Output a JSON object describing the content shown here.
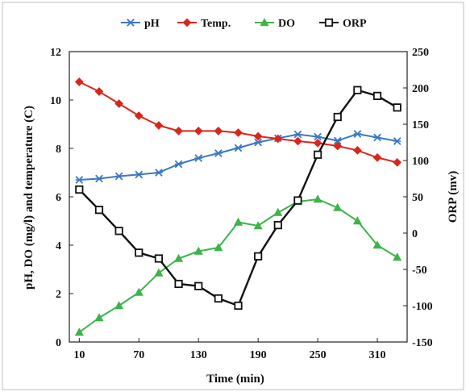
{
  "chart_data": {
    "type": "line",
    "xlabel": "Time (min)",
    "ylabel": "pH, DO (mg/l) and temperature  (C)",
    "y2label": "ORP (mv)",
    "x_ticks": [
      10,
      70,
      130,
      190,
      250,
      310
    ],
    "xlim": [
      0,
      340
    ],
    "ylim": [
      0,
      12
    ],
    "y_ticks": [
      0,
      2,
      4,
      6,
      8,
      10,
      12
    ],
    "y2lim": [
      -150,
      250
    ],
    "y2_ticks": [
      -150,
      -100,
      -50,
      0,
      50,
      100,
      150,
      200,
      250
    ],
    "grid": false,
    "legend_position": "top",
    "x": [
      10,
      30,
      50,
      70,
      90,
      110,
      130,
      150,
      170,
      190,
      210,
      230,
      250,
      270,
      290,
      310,
      330
    ],
    "series": [
      {
        "name": "pH",
        "axis": "left",
        "color": "#3a78c2",
        "marker": "star",
        "values": [
          6.7,
          6.75,
          6.85,
          6.92,
          7.0,
          7.35,
          7.6,
          7.8,
          8.02,
          8.25,
          8.42,
          8.58,
          8.48,
          8.32,
          8.6,
          8.45,
          8.3
        ]
      },
      {
        "name": "Temp.",
        "axis": "left",
        "color": "#d9261c",
        "marker": "diamond",
        "values": [
          10.75,
          10.35,
          9.85,
          9.35,
          8.95,
          8.72,
          8.72,
          8.72,
          8.65,
          8.5,
          8.4,
          8.3,
          8.22,
          8.1,
          7.92,
          7.62,
          7.42
        ]
      },
      {
        "name": "DO",
        "axis": "left",
        "color": "#3db34a",
        "marker": "triangle",
        "values": [
          0.4,
          1.0,
          1.5,
          2.05,
          2.85,
          3.45,
          3.75,
          3.9,
          4.95,
          4.8,
          5.35,
          5.8,
          5.9,
          5.55,
          5.0,
          4.0,
          3.5
        ]
      },
      {
        "name": "ORP",
        "axis": "right",
        "color": "#111111",
        "marker": "square",
        "values": [
          60,
          32,
          3,
          -27,
          -35,
          -70,
          -73,
          -90,
          -100,
          -32,
          11,
          45,
          108,
          160,
          197,
          189,
          173
        ]
      }
    ]
  }
}
